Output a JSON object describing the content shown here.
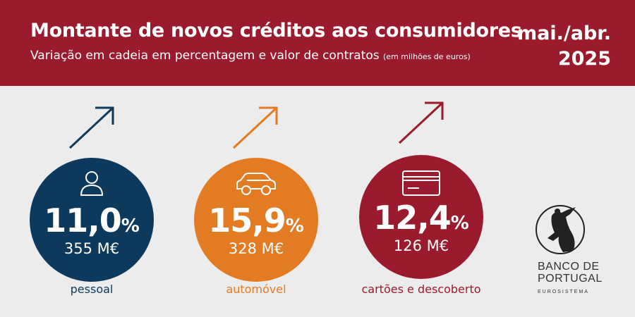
{
  "header": {
    "title": "Montante de novos créditos aos consumidores",
    "subtitle_main": "Variação em cadeia em percentagem e valor de contratos",
    "subtitle_note": "(em milhões de euros)",
    "period_line1": "mai./abr.",
    "period_line2": "2025",
    "background_color": "#9b1b2e"
  },
  "items": [
    {
      "icon": "person-icon",
      "percent": "11,0",
      "percent_unit": "%",
      "value": "355 M€",
      "label": "pessoal",
      "color": "#0d3a5c",
      "trend": "up"
    },
    {
      "icon": "car-icon",
      "percent": "15,9",
      "percent_unit": "%",
      "value": "328 M€",
      "label": "automóvel",
      "color": "#e37b22",
      "trend": "up"
    },
    {
      "icon": "credit-card-icon",
      "percent": "12,4",
      "percent_unit": "%",
      "value": "126 M€",
      "label": "cartões e descoberto",
      "color": "#9b1b2e",
      "trend": "up"
    }
  ],
  "logo": {
    "line1": "BANCO DE",
    "line2": "PORTUGAL",
    "line3": "EUROSISTEMA"
  }
}
